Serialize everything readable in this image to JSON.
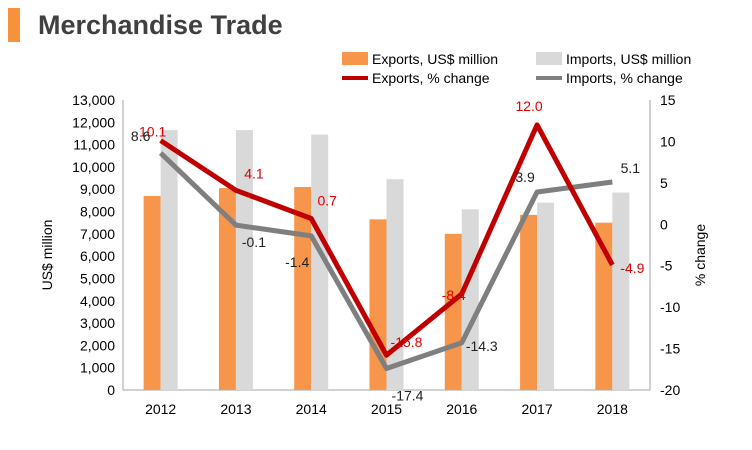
{
  "page": {
    "title": "Merchandise Trade"
  },
  "colors": {
    "accent": "#F7923A",
    "exports_bar": "#F7964A",
    "imports_bar": "#D9D9D9",
    "exports_line": "#C00000",
    "imports_line": "#7F7F7F",
    "exports_label": "#E00000",
    "imports_label": "#222222"
  },
  "chart_data": {
    "type": "bar",
    "categories": [
      "2012",
      "2013",
      "2014",
      "2015",
      "2016",
      "2017",
      "2018"
    ],
    "series": [
      {
        "name": "Exports, US$ million",
        "type": "bar",
        "axis": "left",
        "values": [
          8700,
          9050,
          9100,
          7650,
          7000,
          7850,
          7500
        ]
      },
      {
        "name": "Imports, US$ million",
        "type": "bar",
        "axis": "left",
        "values": [
          11650,
          11650,
          11450,
          9450,
          8100,
          8400,
          8850
        ]
      },
      {
        "name": "Exports, % change",
        "type": "line",
        "axis": "right",
        "values": [
          10.1,
          4.1,
          0.7,
          -15.8,
          -8.4,
          12.0,
          -4.9
        ]
      },
      {
        "name": "Imports, % change",
        "type": "line",
        "axis": "right",
        "values": [
          8.6,
          -0.1,
          -1.4,
          -17.4,
          -14.3,
          3.9,
          5.1
        ]
      }
    ],
    "ylabel": "US$ million",
    "y2label": "% change",
    "ylim": [
      0,
      13000
    ],
    "y2lim": [
      -20,
      15
    ],
    "yticks": [
      "0",
      "1,000",
      "2,000",
      "3,000",
      "4,000",
      "5,000",
      "6,000",
      "7,000",
      "8,000",
      "9,000",
      "10,000",
      "11,000",
      "12,000",
      "13,000"
    ],
    "y2ticks": [
      "-20",
      "-15",
      "-10",
      "-5",
      "0",
      "5",
      "10",
      "15"
    ],
    "export_labels": [
      "10.1",
      "4.1",
      "0.7",
      "-15.8",
      "-8.4",
      "12.0",
      "-4.9"
    ],
    "import_labels": [
      "8.6",
      "-0.1",
      "-1.4",
      "-17.4",
      "-14.3",
      "3.9",
      "5.1"
    ],
    "legend_position": "top-right",
    "grid": false
  }
}
